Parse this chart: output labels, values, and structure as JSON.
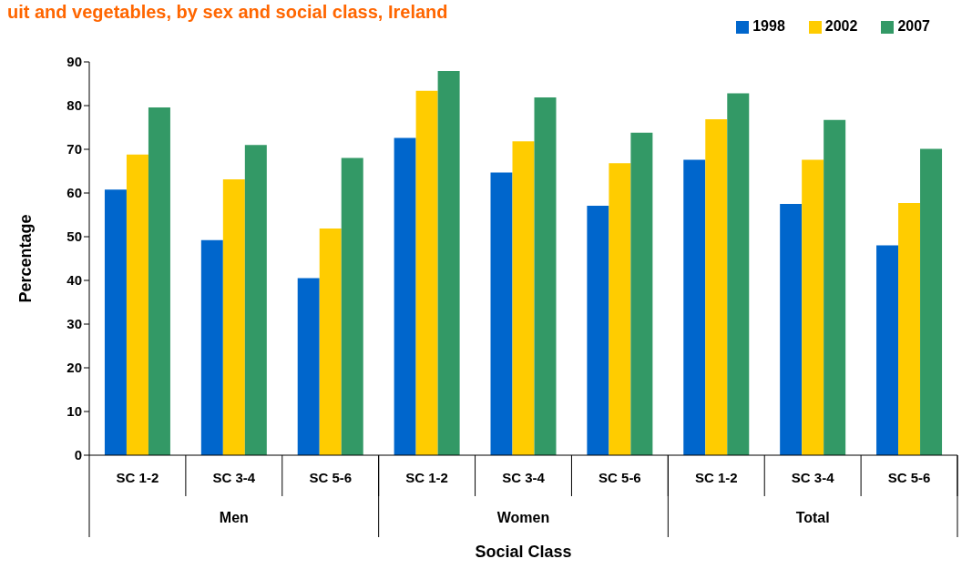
{
  "chart_data": {
    "type": "bar",
    "title": "uit and vegetables, by sex and social class, Ireland",
    "xlabel": "Social Class",
    "ylabel": "Percentage",
    "categories": [
      "SC 1-2",
      "SC 3-4",
      "SC 5-6",
      "SC 1-2",
      "SC 3-4",
      "SC 5-6",
      "SC 1-2",
      "SC 3-4",
      "SC 5-6"
    ],
    "annotations": [
      "Men",
      "Women",
      "Total"
    ],
    "series": [
      {
        "name": "1998",
        "color": "#0066cc",
        "values": [
          60.8,
          49.2,
          40.5,
          72.6,
          64.7,
          57.1,
          67.6,
          57.5,
          48.0
        ]
      },
      {
        "name": "2002",
        "color": "#ffcc00",
        "values": [
          68.8,
          63.1,
          51.9,
          83.4,
          71.8,
          66.8,
          76.9,
          67.6,
          57.7
        ]
      },
      {
        "name": "2007",
        "color": "#339966",
        "values": [
          79.6,
          71.0,
          68.0,
          87.9,
          81.9,
          73.8,
          82.8,
          76.7,
          70.1
        ]
      }
    ],
    "ylim": [
      0,
      90
    ],
    "yticks": [
      0,
      10,
      20,
      30,
      40,
      50,
      60,
      70,
      80,
      90
    ],
    "grid": false,
    "legend": "top right"
  }
}
